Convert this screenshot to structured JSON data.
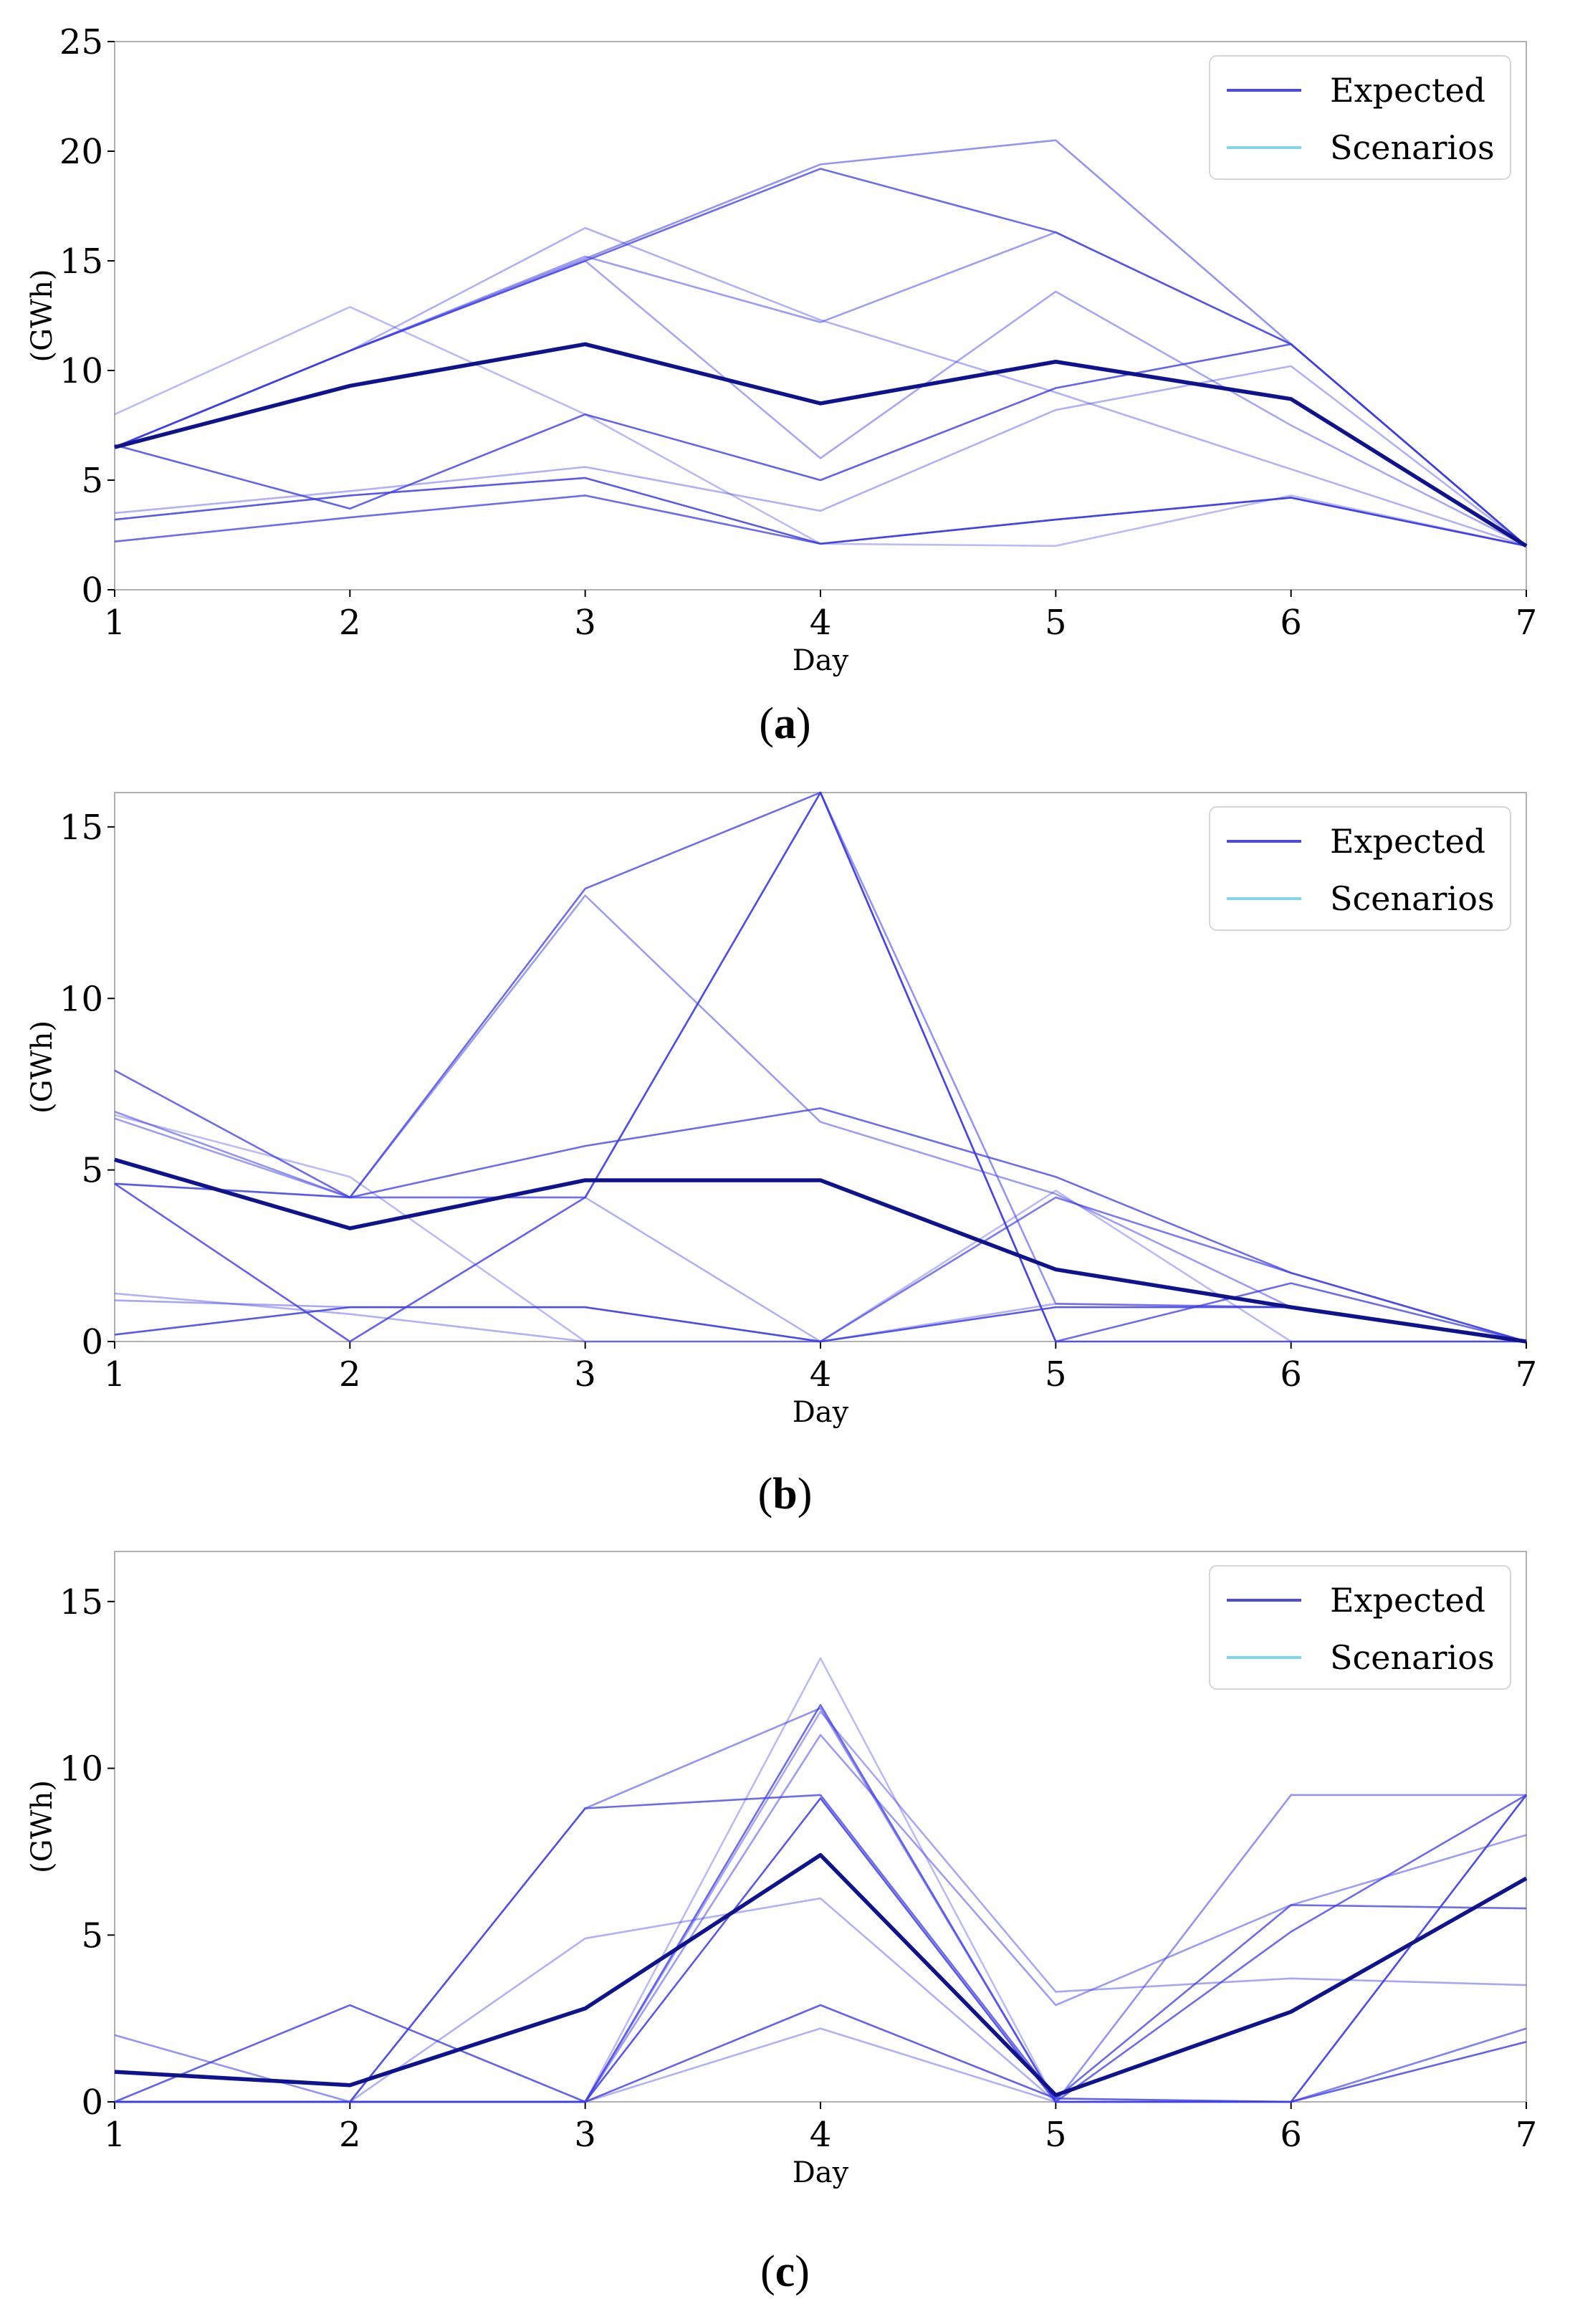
{
  "colors": {
    "expected": "#10148c",
    "scenario": "#3c3ce6",
    "legend_expected": "#4b4bdc",
    "legend_scenarios": "#7fd6ee"
  },
  "chart_data": [
    {
      "type": "line",
      "panel_label": "a",
      "xlabel": "Day",
      "ylabel": "(GWh)",
      "xlim": [
        1,
        7
      ],
      "ylim": [
        0,
        25
      ],
      "x": [
        1,
        2,
        3,
        4,
        5,
        6,
        7
      ],
      "xticks": [
        "1",
        "2",
        "3",
        "4",
        "5",
        "6",
        "7"
      ],
      "yticks": [
        "0",
        "5",
        "10",
        "15",
        "20",
        "25"
      ],
      "legend": {
        "position": "top-right",
        "entries": [
          "Expected",
          "Scenarios"
        ]
      },
      "series": [
        {
          "name": "Expected",
          "values": [
            6.5,
            9.3,
            11.2,
            8.5,
            10.4,
            8.7,
            2.0
          ]
        },
        {
          "name": "Scenario 1",
          "values": [
            6.5,
            10.9,
            15.1,
            19.4,
            20.5,
            11.2,
            2.0
          ]
        },
        {
          "name": "Scenario 2",
          "values": [
            6.5,
            10.9,
            15.0,
            19.2,
            16.3,
            11.2,
            2.0
          ]
        },
        {
          "name": "Scenario 3",
          "values": [
            8.0,
            12.9,
            8.0,
            2.1,
            2.0,
            4.3,
            2.0
          ]
        },
        {
          "name": "Scenario 4",
          "values": [
            6.5,
            10.9,
            16.5,
            12.3,
            9.0,
            5.5,
            2.0
          ]
        },
        {
          "name": "Scenario 5",
          "values": [
            6.6,
            3.7,
            8.0,
            5.0,
            9.2,
            11.2,
            2.0
          ]
        },
        {
          "name": "Scenario 6",
          "values": [
            6.5,
            10.9,
            15.0,
            6.0,
            13.6,
            7.5,
            2.0
          ]
        },
        {
          "name": "Scenario 7",
          "values": [
            3.2,
            4.3,
            5.1,
            2.1,
            3.2,
            4.2,
            2.0
          ]
        },
        {
          "name": "Scenario 8",
          "values": [
            3.5,
            4.5,
            5.6,
            3.6,
            8.2,
            10.2,
            2.0
          ]
        },
        {
          "name": "Scenario 9",
          "values": [
            2.2,
            3.3,
            4.3,
            2.1,
            3.2,
            4.2,
            2.0
          ]
        },
        {
          "name": "Scenario 10",
          "values": [
            6.5,
            10.9,
            15.2,
            12.2,
            16.3,
            11.2,
            2.0
          ]
        }
      ]
    },
    {
      "type": "line",
      "panel_label": "b",
      "xlabel": "Day",
      "ylabel": "(GWh)",
      "xlim": [
        1,
        7
      ],
      "ylim": [
        0,
        16
      ],
      "x": [
        1,
        2,
        3,
        4,
        5,
        6,
        7
      ],
      "xticks": [
        "1",
        "2",
        "3",
        "4",
        "5",
        "6",
        "7"
      ],
      "yticks": [
        "0",
        "5",
        "10",
        "15"
      ],
      "legend": {
        "position": "top-right",
        "entries": [
          "Expected",
          "Scenarios"
        ]
      },
      "series": [
        {
          "name": "Expected",
          "values": [
            5.3,
            3.3,
            4.7,
            4.7,
            2.1,
            1.0,
            0.0
          ]
        },
        {
          "name": "Scenario 1",
          "values": [
            6.7,
            4.2,
            4.2,
            16.0,
            1.1,
            1.0,
            0.0
          ]
        },
        {
          "name": "Scenario 2",
          "values": [
            7.9,
            4.2,
            13.2,
            16.0,
            0.0,
            1.7,
            0.0
          ]
        },
        {
          "name": "Scenario 3",
          "values": [
            6.6,
            4.8,
            0.0,
            0.0,
            4.4,
            0.0,
            0.0
          ]
        },
        {
          "name": "Scenario 4",
          "values": [
            4.6,
            4.2,
            4.2,
            0.0,
            4.2,
            2.0,
            0.0
          ]
        },
        {
          "name": "Scenario 5",
          "values": [
            4.6,
            0.0,
            4.2,
            16.0,
            0.0,
            0.0,
            0.0
          ]
        },
        {
          "name": "Scenario 6",
          "values": [
            1.2,
            1.0,
            1.0,
            0.0,
            4.2,
            2.0,
            0.0
          ]
        },
        {
          "name": "Scenario 7",
          "values": [
            0.2,
            1.0,
            1.0,
            0.0,
            1.0,
            1.0,
            0.0
          ]
        },
        {
          "name": "Scenario 8",
          "values": [
            1.4,
            0.8,
            0.0,
            0.0,
            1.1,
            1.0,
            0.0
          ]
        },
        {
          "name": "Scenario 9",
          "values": [
            4.6,
            4.2,
            5.7,
            6.8,
            4.8,
            2.0,
            0.0
          ]
        },
        {
          "name": "Scenario 10",
          "values": [
            6.5,
            4.2,
            13.0,
            6.4,
            4.3,
            1.0,
            0.0
          ]
        }
      ]
    },
    {
      "type": "line",
      "panel_label": "c",
      "xlabel": "Day",
      "ylabel": "(GWh)",
      "xlim": [
        1,
        7
      ],
      "ylim": [
        0,
        16.5
      ],
      "x": [
        1,
        2,
        3,
        4,
        5,
        6,
        7
      ],
      "xticks": [
        "1",
        "2",
        "3",
        "4",
        "5",
        "6",
        "7"
      ],
      "yticks": [
        "0",
        "5",
        "10",
        "15"
      ],
      "legend": {
        "position": "top-right",
        "entries": [
          "Expected",
          "Scenarios"
        ]
      },
      "series": [
        {
          "name": "Expected",
          "values": [
            0.9,
            0.5,
            2.8,
            7.4,
            0.2,
            2.7,
            6.7
          ]
        },
        {
          "name": "Scenario 1",
          "values": [
            2.0,
            0.0,
            8.8,
            11.8,
            0.0,
            9.2,
            9.2
          ]
        },
        {
          "name": "Scenario 2",
          "values": [
            0.0,
            0.0,
            8.8,
            9.2,
            0.1,
            5.9,
            5.8
          ]
        },
        {
          "name": "Scenario 3",
          "values": [
            0.0,
            0.0,
            0.0,
            13.3,
            0.0,
            0.0,
            9.2
          ]
        },
        {
          "name": "Scenario 4",
          "values": [
            0.0,
            0.0,
            4.9,
            6.1,
            0.0,
            0.0,
            2.2
          ]
        },
        {
          "name": "Scenario 5",
          "values": [
            0.0,
            2.9,
            0.0,
            2.9,
            0.1,
            0.0,
            1.8
          ]
        },
        {
          "name": "Scenario 6",
          "values": [
            0.0,
            0.0,
            0.0,
            11.7,
            3.3,
            3.7,
            3.5
          ]
        },
        {
          "name": "Scenario 7",
          "values": [
            0.0,
            0.0,
            0.0,
            9.1,
            0.0,
            0.0,
            9.2
          ]
        },
        {
          "name": "Scenario 8",
          "values": [
            0.0,
            0.0,
            0.0,
            2.2,
            0.0,
            0.0,
            2.2
          ]
        },
        {
          "name": "Scenario 9",
          "values": [
            0.0,
            0.0,
            0.0,
            11.9,
            0.0,
            5.1,
            9.2
          ]
        },
        {
          "name": "Scenario 10",
          "values": [
            0.0,
            0.0,
            0.0,
            11.0,
            2.9,
            5.9,
            8.0
          ]
        }
      ]
    }
  ]
}
